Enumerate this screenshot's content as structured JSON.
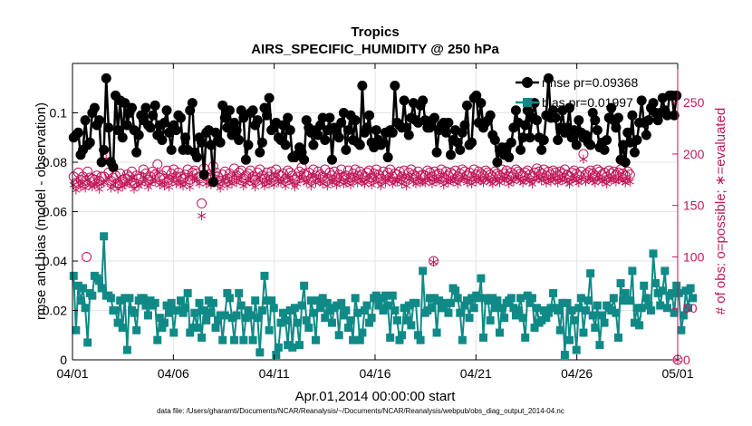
{
  "chart_data": {
    "type": "line",
    "title": "Tropics",
    "subtitle": "AIRS_SPECIFIC_HUMIDITY @ 250 hPa",
    "xlabel": "Apr.01,2014 00:00:00 start",
    "ylabel": "rmse and bias (model - observation)",
    "y2label": "# of obs: o=possible; ∗=evaluated",
    "footnote": "data file: /Users/gharamti/Documents/NCAR/Reanalysis/~/Documents/NCAR/Reanalysis/webpub/obs_diag_output_2014-04.nc",
    "xlim": [
      0,
      30
    ],
    "ylim": [
      0,
      0.12
    ],
    "y2lim": [
      0,
      288
    ],
    "xticks": [
      0,
      5,
      10,
      15,
      20,
      25,
      30
    ],
    "xtick_labels": [
      "04/01",
      "04/06",
      "04/11",
      "04/16",
      "04/21",
      "04/26",
      "05/01"
    ],
    "yticks": [
      0,
      0.02,
      0.04,
      0.06,
      0.08,
      0.1
    ],
    "ytick_labels": [
      "0",
      "0.02",
      "0.04",
      "0.06",
      "0.08",
      "0.1"
    ],
    "y2ticks": [
      0,
      50,
      100,
      150,
      200,
      250
    ],
    "y2tick_labels": [
      "0",
      "50",
      "100",
      "150",
      "200",
      "250"
    ],
    "grid": true,
    "legend_position": "top-right",
    "legend": [
      "rmse pr=0.09368",
      "bias pr=0.01997"
    ],
    "colors": {
      "rmse": "#000000",
      "bias": "#108a87",
      "obs": "#c0185a"
    },
    "rmse": {
      "name": "rmse pr=0.09368",
      "values": [
        0.09,
        0.091,
        0.092,
        0.083,
        0.085,
        0.097,
        0.087,
        0.088,
        0.1,
        0.102,
        0.095,
        0.097,
        0.08,
        0.085,
        0.114,
        0.094,
        0.08,
        0.078,
        0.107,
        0.093,
        0.105,
        0.09,
        0.104,
        0.095,
        0.1,
        0.102,
        0.093,
        0.084,
        0.091,
        0.099,
        0.097,
        0.102,
        0.095,
        0.094,
        0.099,
        0.103,
        0.091,
        0.095,
        0.089,
        0.096,
        0.101,
        0.092,
        0.085,
        0.095,
        0.093,
        0.099,
        0.098,
        0.085,
        0.09,
        0.085,
        0.101,
        0.104,
        0.084,
        0.082,
        0.09,
        0.088,
        0.075,
        0.092,
        0.093,
        0.087,
        0.072,
        0.092,
        0.089,
        0.088,
        0.103,
        0.098,
        0.094,
        0.101,
        0.091,
        0.096,
        0.093,
        0.089,
        0.101,
        0.098,
        0.081,
        0.087,
        0.1,
        0.101,
        0.095,
        0.097,
        0.084,
        0.088,
        0.102,
        0.099,
        0.106,
        0.093,
        0.094,
        0.096,
        0.09,
        0.089,
        0.095,
        0.087,
        0.098,
        0.093,
        0.082,
        0.082,
        0.083,
        0.086,
        0.084,
        0.081,
        0.097,
        0.094,
        0.092,
        0.087,
        0.093,
        0.091,
        0.095,
        0.098,
        0.089,
        0.093,
        0.098,
        0.081,
        0.094,
        0.092,
        0.09,
        0.096,
        0.1,
        0.085,
        0.093,
        0.099,
        0.089,
        0.097,
        0.088,
        0.087,
        0.111,
        0.092,
        0.094,
        0.099,
        0.088,
        0.086,
        0.093,
        0.089,
        0.087,
        0.088,
        0.092,
        0.082,
        0.093,
        0.092,
        0.111,
        0.096,
        0.095,
        0.094,
        0.105,
        0.094,
        0.091,
        0.098,
        0.104,
        0.097,
        0.096,
        0.103,
        0.105,
        0.097,
        0.094,
        0.094,
        0.097,
        0.098,
        0.084,
        0.093,
        0.095,
        0.096,
        0.092,
        0.096,
        0.083,
        0.089,
        0.093,
        0.088,
        0.085,
        0.092,
        0.095,
        0.103,
        0.087,
        0.088,
        0.106,
        0.107,
        0.096,
        0.104,
        0.094,
        0.096,
        0.097,
        0.099,
        0.091,
        0.089,
        0.08,
        0.085,
        0.086,
        0.083,
        0.086,
        0.082,
        0.088,
        0.094,
        0.101,
        0.096,
        0.085,
        0.09,
        0.095,
        0.101,
        0.09,
        0.098,
        0.104,
        0.097,
        0.09,
        0.085,
        0.089,
        0.099,
        0.114,
        0.098,
        0.101,
        0.098,
        0.089,
        0.094,
        0.101,
        0.092,
        0.094,
        0.102,
        0.09,
        0.093,
        0.087,
        0.097,
        0.092,
        0.09,
        0.091,
        0.088,
        0.087,
        0.1,
        0.097,
        0.093,
        0.086,
        0.088,
        0.085,
        0.089,
        0.098,
        0.102,
        0.097,
        0.094,
        0.098,
        0.081,
        0.087,
        0.08,
        0.092,
        0.088,
        0.099,
        0.084,
        0.089,
        0.096,
        0.105,
        0.096,
        0.091,
        0.097,
        0.102,
        0.104,
        0.1,
        0.097,
        0.1,
        0.106,
        0.101,
        0.099,
        0.107,
        0.107,
        0.099,
        0.107
      ]
    },
    "bias": {
      "name": "bias pr=0.01997",
      "values": [
        0.034,
        0.012,
        0.03,
        0.024,
        0.029,
        0.021,
        0.007,
        0.027,
        0.026,
        0.034,
        0.033,
        0.032,
        0.029,
        0.05,
        0.026,
        0.026,
        0.025,
        0.02,
        0.02,
        0.015,
        0.024,
        0.013,
        0.025,
        0.004,
        0.025,
        0.02,
        0.019,
        0.012,
        0.024,
        0.025,
        0.025,
        0.022,
        0.018,
        0.024,
        0.022,
        0.023,
        0.008,
        0.017,
        0.013,
        0.015,
        0.022,
        0.019,
        0.023,
        0.011,
        0.02,
        0.02,
        0.024,
        0.019,
        0.021,
        0.027,
        0.011,
        0.013,
        0.019,
        0.013,
        0.023,
        0.009,
        0.02,
        0.016,
        0.024,
        0.019,
        0.023,
        0.013,
        0.016,
        0.018,
        0.008,
        0.018,
        0.027,
        0.025,
        0.017,
        0.008,
        0.018,
        0.027,
        0.022,
        0.008,
        0.017,
        0.02,
        0.018,
        0.008,
        0.024,
        0.017,
        0.003,
        0.02,
        0.034,
        0.024,
        0.012,
        0.024,
        0.021,
        0.002,
        0.005,
        0.015,
        0.019,
        0.016,
        0.006,
        0.02,
        0.005,
        0.021,
        0.015,
        0.006,
        0.022,
        0.03,
        0.016,
        0.013,
        0.024,
        0.019,
        0.008,
        0.024,
        0.021,
        0.025,
        0.017,
        0.023,
        0.02,
        0.015,
        0.021,
        0.022,
        0.01,
        0.023,
        0.018,
        0.02,
        0.013,
        0.016,
        0.008,
        0.025,
        0.019,
        0.008,
        0.011,
        0.02,
        0.022,
        0.015,
        0.017,
        0.025,
        0.026,
        0.022,
        0.025,
        0.02,
        0.026,
        0.022,
        0.009,
        0.026,
        0.02,
        0.016,
        0.008,
        0.01,
        0.021,
        0.016,
        0.022,
        0.014,
        0.023,
        0.023,
        0.01,
        0.008,
        0.036,
        0.019,
        0.02,
        0.025,
        0.021,
        0.025,
        0.011,
        0.024,
        0.021,
        0.021,
        0.023,
        0.019,
        0.023,
        0.029,
        0.028,
        0.025,
        0.019,
        0.008,
        0.022,
        0.024,
        0.017,
        0.025,
        0.021,
        0.026,
        0.025,
        0.033,
        0.009,
        0.025,
        0.024,
        0.016,
        0.025,
        0.021,
        0.024,
        0.011,
        0.021,
        0.017,
        0.023,
        0.024,
        0.025,
        0.021,
        0.018,
        0.02,
        0.025,
        0.017,
        0.009,
        0.026,
        0.023,
        0.025,
        0.013,
        0.021,
        0.015,
        0.016,
        0.02,
        0.017,
        0.019,
        0.021,
        0.027,
        0.021,
        0.02,
        0.012,
        0.023,
        0.002,
        0.023,
        0.008,
        0.02,
        0.016,
        0.004,
        0.021,
        0.025,
        0.011,
        0.02,
        0.024,
        0.035,
        0.018,
        0.013,
        0.022,
        0.006,
        0.018,
        0.015,
        0.022,
        0.021,
        0.02,
        0.025,
        0.019,
        0.009,
        0.031,
        0.024,
        0.027,
        0.024,
        0.024,
        0.036,
        0.015,
        0.021,
        0.014,
        0.021,
        0.03,
        0.025,
        0.022,
        0.02,
        0.043,
        0.031,
        0.027,
        0.022,
        0.028,
        0.036,
        0.021,
        0.026,
        0.027,
        0.019,
        0.03,
        0.027,
        0.012,
        0.018,
        0.028,
        0.021,
        0.029,
        0.025
      ]
    },
    "obs_possible": {
      "name": "o=possible",
      "values": [
        178,
        172,
        182,
        175,
        178,
        174,
        183,
        177,
        176,
        175,
        179,
        174,
        178,
        178,
        200,
        182,
        174,
        177,
        179,
        172,
        181,
        175,
        176,
        180,
        178,
        183,
        172,
        179,
        176,
        178,
        185,
        181,
        175,
        178,
        183,
        180,
        190,
        177,
        179,
        176,
        184,
        175,
        181,
        185,
        178,
        182,
        178,
        176,
        180,
        185,
        175,
        182,
        184,
        181,
        178,
        152,
        186,
        178,
        180,
        177,
        188,
        182,
        178,
        174,
        180,
        183,
        176,
        181,
        178,
        186,
        179,
        182,
        184,
        176,
        179,
        181,
        184,
        178,
        175,
        182,
        185,
        179,
        176,
        182,
        178,
        183,
        177,
        185,
        180,
        179,
        181,
        176,
        184,
        182,
        179,
        175,
        178,
        183,
        187,
        181,
        179,
        182,
        176,
        185,
        179,
        183,
        180,
        178,
        185,
        176,
        182,
        179,
        183,
        177,
        180,
        185,
        178,
        179,
        184,
        177,
        181,
        185,
        179,
        183,
        180,
        178,
        182,
        184,
        177,
        181,
        185,
        180,
        176,
        183,
        179,
        182,
        185,
        178,
        181,
        180,
        183,
        178,
        184,
        176,
        182,
        185,
        180,
        178,
        183,
        179,
        180,
        179,
        184,
        182,
        178,
        183,
        180,
        181,
        185,
        177,
        183,
        179,
        182,
        180,
        184,
        178,
        181,
        185,
        183,
        179,
        182,
        178,
        185,
        180,
        183,
        181,
        179,
        184,
        182,
        180,
        178,
        183,
        181,
        179,
        185,
        181,
        184,
        178,
        182,
        180,
        185,
        183,
        181,
        179,
        182,
        184,
        180,
        178,
        182,
        186,
        183,
        181,
        185,
        179,
        183,
        180,
        184,
        182,
        179,
        183,
        181,
        185,
        180,
        178,
        182,
        184,
        181,
        179,
        183,
        200,
        180,
        182,
        184,
        181,
        179,
        185,
        183,
        180,
        182,
        178,
        184,
        181,
        183,
        180,
        182,
        185,
        181,
        179,
        183,
        180
      ]
    },
    "obs_evaluated": {
      "name": "∗=evaluated",
      "values": [
        170,
        165,
        173,
        168,
        172,
        167,
        175,
        170,
        168,
        170,
        172,
        166,
        171,
        172,
        195,
        176,
        167,
        170,
        172,
        166,
        174,
        168,
        170,
        173,
        171,
        177,
        166,
        172,
        169,
        171,
        178,
        174,
        168,
        171,
        176,
        173,
        183,
        170,
        172,
        169,
        177,
        168,
        174,
        178,
        171,
        175,
        171,
        169,
        173,
        178,
        168,
        175,
        177,
        174,
        171,
        140,
        179,
        171,
        173,
        170,
        181,
        175,
        171,
        167,
        173,
        176,
        169,
        174,
        171,
        179,
        172,
        175,
        177,
        169,
        172,
        174,
        177,
        171,
        168,
        175,
        178,
        172,
        169,
        175,
        171,
        176,
        170,
        178,
        173,
        172,
        174,
        169,
        177,
        175,
        172,
        168,
        171,
        176,
        180,
        174,
        172,
        175,
        169,
        178,
        172,
        176,
        173,
        171,
        178,
        169,
        175,
        172,
        176,
        170,
        173,
        178,
        171,
        172,
        177,
        170,
        174,
        178,
        172,
        176,
        173,
        171,
        175,
        177,
        170,
        174,
        178,
        173,
        169,
        176,
        172,
        175,
        178,
        171,
        174,
        173,
        176,
        171,
        177,
        169,
        175,
        178,
        173,
        171,
        176,
        172,
        173,
        172,
        177,
        175,
        171,
        176,
        173,
        174,
        178,
        170,
        176,
        172,
        175,
        173,
        177,
        171,
        174,
        178,
        176,
        172,
        175,
        171,
        178,
        173,
        176,
        174,
        172,
        177,
        175,
        173,
        171,
        176,
        174,
        172,
        178,
        174,
        177,
        171,
        175,
        173,
        178,
        176,
        174,
        172,
        175,
        177,
        173,
        171,
        175,
        179,
        176,
        174,
        178,
        172,
        176,
        173,
        177,
        175,
        172,
        176,
        174,
        178,
        173,
        171,
        175,
        177,
        174,
        172,
        176,
        195,
        173,
        175,
        177,
        174,
        172,
        178,
        176,
        173,
        175,
        171,
        177,
        174,
        176,
        173,
        175,
        178,
        174,
        172,
        176,
        173
      ]
    },
    "low_obs_points": {
      "possible": [
        {
          "x": 0.7,
          "y": 100
        },
        {
          "x": 17.9,
          "y": 96
        },
        {
          "x": 30,
          "y": 0
        }
      ],
      "evaluated": [
        {
          "x": 17.9,
          "y": 95
        },
        {
          "x": 30,
          "y": 0
        }
      ]
    }
  }
}
